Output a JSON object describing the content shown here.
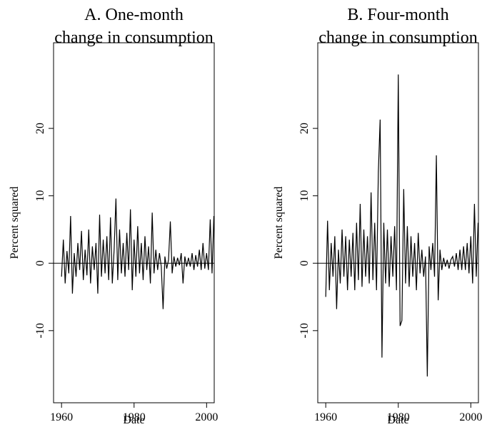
{
  "chart_data": [
    {
      "type": "line",
      "title": [
        "A. One-month",
        "change in consumption"
      ],
      "xlabel": "Date",
      "ylabel": "Percent squared",
      "color": "#000000",
      "reference_line": 0,
      "xlim": [
        1957.8,
        2002.1
      ],
      "ylim": [
        -20.7,
        32.7
      ],
      "xticks": [
        1960,
        1980,
        2000
      ],
      "yticks": [
        -10,
        0,
        10,
        20
      ],
      "x": [
        1960,
        1960.5,
        1961,
        1961.5,
        1962,
        1962.5,
        1963,
        1963.5,
        1964,
        1964.5,
        1965,
        1965.5,
        1966,
        1966.5,
        1967,
        1967.5,
        1968,
        1968.5,
        1969,
        1969.5,
        1970,
        1970.5,
        1971,
        1971.5,
        1972,
        1972.5,
        1973,
        1973.5,
        1974,
        1974.5,
        1975,
        1975.5,
        1976,
        1976.5,
        1977,
        1977.5,
        1978,
        1978.5,
        1979,
        1979.5,
        1980,
        1980.5,
        1981,
        1981.5,
        1982,
        1982.5,
        1983,
        1983.5,
        1984,
        1984.5,
        1985,
        1985.5,
        1986,
        1986.5,
        1987,
        1987.5,
        1988,
        1988.5,
        1989,
        1989.5,
        1990,
        1990.5,
        1991,
        1991.5,
        1992,
        1992.5,
        1993,
        1993.5,
        1994,
        1994.5,
        1995,
        1995.5,
        1996,
        1996.5,
        1997,
        1997.5,
        1998,
        1998.5,
        1999,
        1999.5,
        2000,
        2000.5,
        2001,
        2001.5,
        2002
      ],
      "values": [
        -2,
        3.5,
        -3,
        1.8,
        -1.5,
        7,
        -4.5,
        1.5,
        -2,
        3,
        -1,
        4.8,
        -2.5,
        2,
        -1.8,
        5,
        -3,
        2.5,
        -1,
        3,
        -4.5,
        7.2,
        -2,
        3.5,
        -1.5,
        4,
        -2.5,
        6.8,
        -3,
        2,
        9.6,
        -2.5,
        5,
        -1.5,
        3,
        -2,
        4.5,
        -1,
        8,
        -4,
        3.5,
        -2,
        5.5,
        -1.5,
        3,
        -2.5,
        4,
        -1,
        2.5,
        -3,
        7.5,
        -1.5,
        2,
        -1,
        1.5,
        -0.5,
        -6.8,
        1,
        -0.8,
        0.5,
        6.2,
        -1.5,
        1,
        -0.5,
        0.8,
        -0.3,
        1.5,
        -3,
        1,
        -0.5,
        0.8,
        -0.5,
        1.5,
        -1,
        1.2,
        -0.5,
        2,
        -1,
        3,
        -0.8,
        1.5,
        -1,
        6.5,
        -1.5,
        7
      ]
    },
    {
      "type": "line",
      "title": [
        "B. Four-month",
        "change in consumption"
      ],
      "xlabel": "Date",
      "ylabel": "Percent squared",
      "color": "#000000",
      "reference_line": 0,
      "xlim": [
        1957.8,
        2002.1
      ],
      "ylim": [
        -20.7,
        32.7
      ],
      "xticks": [
        1960,
        1980,
        2000
      ],
      "yticks": [
        -10,
        0,
        10,
        20
      ],
      "x": [
        1960,
        1960.5,
        1961,
        1961.5,
        1962,
        1962.5,
        1963,
        1963.5,
        1964,
        1964.5,
        1965,
        1965.5,
        1966,
        1966.5,
        1967,
        1967.5,
        1968,
        1968.5,
        1969,
        1969.5,
        1970,
        1970.5,
        1971,
        1971.5,
        1972,
        1972.5,
        1973,
        1973.5,
        1974,
        1974.5,
        1975,
        1975.5,
        1976,
        1976.5,
        1977,
        1977.5,
        1978,
        1978.5,
        1979,
        1979.5,
        1980,
        1980.5,
        1981,
        1981.5,
        1982,
        1982.5,
        1983,
        1983.5,
        1984,
        1984.5,
        1985,
        1985.5,
        1986,
        1986.5,
        1987,
        1987.5,
        1988,
        1988.5,
        1989,
        1989.5,
        1990,
        1990.5,
        1991,
        1991.5,
        1992,
        1992.5,
        1993,
        1993.5,
        1994,
        1994.5,
        1995,
        1995.5,
        1996,
        1996.5,
        1997,
        1997.5,
        1998,
        1998.5,
        1999,
        1999.5,
        2000,
        2000.5,
        2001,
        2001.5,
        2002
      ],
      "values": [
        -5,
        6.3,
        -4,
        3,
        -2,
        4,
        -6.8,
        2,
        -3,
        5,
        -2,
        4,
        -4,
        3.5,
        -2,
        4.5,
        -4,
        6,
        -2.5,
        8.8,
        -3.5,
        5,
        -2,
        4,
        -3,
        10.5,
        -2.5,
        6,
        -4,
        13.5,
        21.3,
        -14,
        6,
        -3,
        5,
        -3.5,
        4,
        -2,
        5.5,
        -4,
        28,
        -9.3,
        -8.5,
        11,
        -3,
        5.5,
        -3.5,
        4,
        -2,
        3,
        -4,
        4.5,
        -1.5,
        2,
        -2,
        1,
        -16.8,
        2.5,
        -1,
        3,
        -2,
        16,
        -5.5,
        2,
        -1,
        0.8,
        -0.5,
        0.5,
        -0.8,
        0.5,
        1,
        -0.5,
        1.5,
        -1,
        2,
        -1,
        2.5,
        -1,
        3,
        -1.5,
        4,
        -3,
        8.8,
        -2,
        6
      ]
    }
  ]
}
